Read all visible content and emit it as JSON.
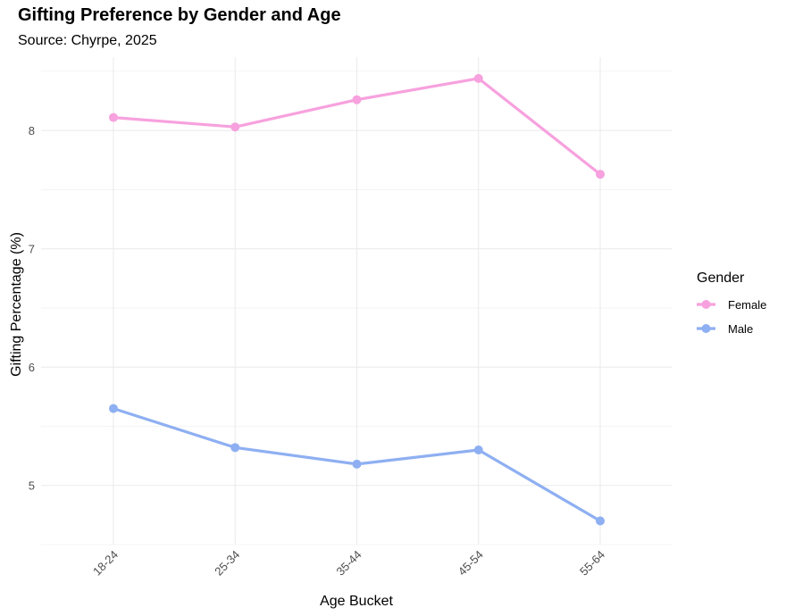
{
  "chart_data": {
    "type": "line",
    "title": "Gifting Preference by Gender and Age",
    "subtitle": "Source: Chyrpe, 2025",
    "xlabel": "Age Bucket",
    "ylabel": "Gifting Percentage (%)",
    "categories": [
      "18-24",
      "25-34",
      "35-44",
      "45-54",
      "55-64"
    ],
    "ylim": [
      4.5,
      8.62
    ],
    "yticks": [
      5,
      6,
      7,
      8
    ],
    "grid": true,
    "legend": {
      "title": "Gender",
      "position": "right"
    },
    "series": [
      {
        "name": "Female",
        "color": "#F7A1DE",
        "values": [
          8.11,
          8.03,
          8.26,
          8.44,
          7.63
        ]
      },
      {
        "name": "Male",
        "color": "#8EAFF2",
        "values": [
          5.65,
          5.32,
          5.18,
          5.3,
          4.7
        ]
      }
    ]
  }
}
